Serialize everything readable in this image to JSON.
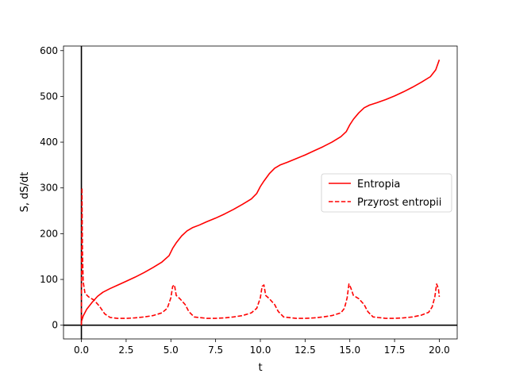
{
  "chart_data": {
    "type": "line",
    "title": "",
    "xlabel": "t",
    "ylabel": "S, dS/dt",
    "xlim": [
      -1.0,
      21.0
    ],
    "ylim": [
      -30,
      610
    ],
    "xticks": [
      0.0,
      2.5,
      5.0,
      7.5,
      10.0,
      12.5,
      15.0,
      17.5,
      20.0
    ],
    "xtick_labels": [
      "0.0",
      "2.5",
      "5.0",
      "7.5",
      "10.0",
      "12.5",
      "15.0",
      "17.5",
      "20.0"
    ],
    "yticks": [
      0,
      100,
      200,
      300,
      400,
      500,
      600
    ],
    "ytick_labels": [
      "0",
      "100",
      "200",
      "300",
      "400",
      "500",
      "600"
    ],
    "grid": false,
    "axis_lines": {
      "x": 0,
      "y": 0
    },
    "legend_position": "center-right",
    "series": [
      {
        "name": "Entropia",
        "style": "solid",
        "color": "#ff0000",
        "x": [
          0.0,
          0.1,
          0.3,
          0.6,
          0.9,
          1.2,
          1.6,
          2.0,
          2.5,
          3.0,
          3.5,
          4.0,
          4.5,
          4.9,
          5.1,
          5.3,
          5.6,
          5.9,
          6.2,
          6.6,
          7.0,
          7.5,
          8.0,
          8.5,
          9.0,
          9.5,
          9.8,
          10.0,
          10.2,
          10.5,
          10.8,
          11.1,
          11.5,
          12.0,
          12.5,
          13.0,
          13.5,
          14.0,
          14.5,
          14.8,
          15.0,
          15.2,
          15.5,
          15.8,
          16.1,
          16.5,
          17.0,
          17.5,
          18.0,
          18.5,
          19.0,
          19.5,
          19.8,
          20.0
        ],
        "y": [
          8,
          20,
          35,
          50,
          63,
          72,
          80,
          87,
          96,
          105,
          115,
          126,
          138,
          152,
          168,
          180,
          195,
          206,
          213,
          219,
          226,
          234,
          243,
          253,
          264,
          276,
          288,
          303,
          315,
          331,
          343,
          350,
          356,
          364,
          372,
          381,
          390,
          400,
          412,
          423,
          438,
          450,
          464,
          475,
          481,
          486,
          493,
          501,
          510,
          520,
          531,
          543,
          558,
          580
        ]
      },
      {
        "name": "Przyrost entropii",
        "style": "dashed",
        "color": "#ff0000",
        "x": [
          0.0,
          0.03,
          0.06,
          0.1,
          0.2,
          0.4,
          0.7,
          1.0,
          1.3,
          1.6,
          2.0,
          2.5,
          3.0,
          3.5,
          4.0,
          4.5,
          4.8,
          5.0,
          5.1,
          5.2,
          5.3,
          5.5,
          5.8,
          6.0,
          6.3,
          7.0,
          7.5,
          8.0,
          8.5,
          9.0,
          9.5,
          9.8,
          10.0,
          10.1,
          10.2,
          10.3,
          10.5,
          10.8,
          11.0,
          11.3,
          12.0,
          12.5,
          13.0,
          13.5,
          14.0,
          14.5,
          14.7,
          14.85,
          14.95,
          15.05,
          15.2,
          15.5,
          15.8,
          16.0,
          16.3,
          17.0,
          17.5,
          18.0,
          18.5,
          19.0,
          19.4,
          19.6,
          19.75,
          19.85,
          19.95,
          20.0
        ],
        "y": [
          0,
          300,
          160,
          95,
          70,
          62,
          55,
          42,
          25,
          17,
          15,
          15,
          16,
          18,
          21,
          27,
          37,
          60,
          85,
          88,
          65,
          58,
          45,
          30,
          18,
          15,
          15,
          16,
          18,
          21,
          27,
          37,
          60,
          85,
          88,
          65,
          58,
          45,
          30,
          18,
          15,
          15,
          16,
          18,
          21,
          27,
          37,
          60,
          90,
          82,
          65,
          58,
          45,
          30,
          18,
          15,
          15,
          16,
          18,
          22,
          28,
          40,
          62,
          90,
          80,
          62
        ]
      }
    ]
  }
}
